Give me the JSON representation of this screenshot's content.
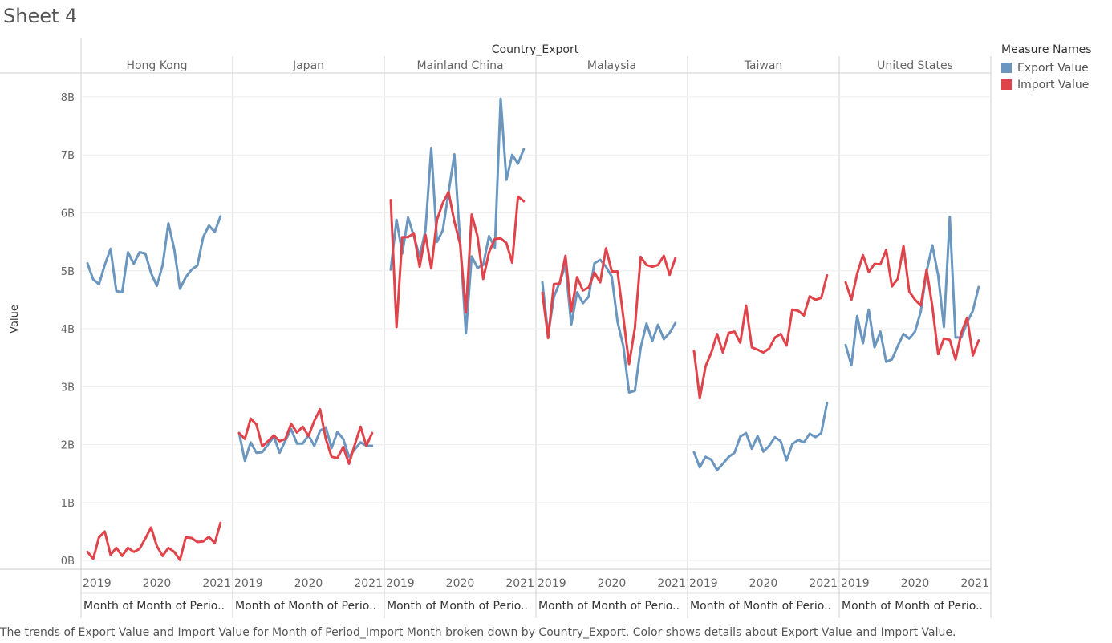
{
  "sheet_title": "Sheet 4",
  "caption": "The trends of Export Value and Import Value for Month of Period_Import Month broken down by Country_Export.  Color shows details about Export Value and Import Value.",
  "legend": {
    "title": "Measure Names",
    "items": [
      {
        "label": "Export Value",
        "color": "#6a96bf"
      },
      {
        "label": "Import Value",
        "color": "#e0434a"
      }
    ]
  },
  "chart_data": {
    "type": "line",
    "column_header_title": "Country_Export",
    "ylabel": "Value",
    "ylim": [
      -0.15,
      8.4
    ],
    "y_ticks": [
      {
        "value": 0,
        "label": "0B"
      },
      {
        "value": 1,
        "label": "1B"
      },
      {
        "value": 2,
        "label": "2B"
      },
      {
        "value": 3,
        "label": "3B"
      },
      {
        "value": 4,
        "label": "4B"
      },
      {
        "value": 5,
        "label": "5B"
      },
      {
        "value": 6,
        "label": "6B"
      },
      {
        "value": 7,
        "label": "7B"
      },
      {
        "value": 8,
        "label": "8B"
      }
    ],
    "x_axis_label": "Month of Month of Perio..",
    "x_ticks": [
      {
        "month": 1,
        "label": "2019"
      },
      {
        "month": 13,
        "label": "2020"
      },
      {
        "month": 25,
        "label": "2021"
      }
    ],
    "months": [
      1,
      2,
      3,
      4,
      5,
      6,
      7,
      8,
      9,
      10,
      11,
      12,
      13,
      14,
      15,
      16,
      17,
      18,
      19,
      20,
      21,
      22,
      23,
      24,
      25
    ],
    "grid": true,
    "legend_position": "right",
    "panels": [
      {
        "country": "Hong Kong",
        "series": [
          {
            "name": "Export Value",
            "color": "#6a96bf",
            "values": [
              5.13,
              4.85,
              4.77,
              5.1,
              5.38,
              4.65,
              4.63,
              5.32,
              5.12,
              5.32,
              5.3,
              4.96,
              4.74,
              5.1,
              5.82,
              5.38,
              4.69,
              4.89,
              5.02,
              5.09,
              5.58,
              5.78,
              5.67,
              5.94,
              null
            ]
          },
          {
            "name": "Import Value",
            "color": "#e0434a",
            "values": [
              0.15,
              0.03,
              0.4,
              0.5,
              0.1,
              0.22,
              0.08,
              0.22,
              0.15,
              0.2,
              0.38,
              0.57,
              0.25,
              0.08,
              0.22,
              0.15,
              0.01,
              0.4,
              0.39,
              0.32,
              0.33,
              0.41,
              0.3,
              0.65,
              null
            ]
          }
        ]
      },
      {
        "country": "Japan",
        "series": [
          {
            "name": "Export Value",
            "color": "#6a96bf",
            "values": [
              2.2,
              1.72,
              2.04,
              1.86,
              1.87,
              2.0,
              2.14,
              1.86,
              2.07,
              2.27,
              2.02,
              2.02,
              2.16,
              1.98,
              2.24,
              2.3,
              1.94,
              2.22,
              2.1,
              1.79,
              1.92,
              2.04,
              1.98,
              1.98,
              null
            ]
          },
          {
            "name": "Import Value",
            "color": "#e0434a",
            "values": [
              2.2,
              2.1,
              2.45,
              2.35,
              1.97,
              2.06,
              2.16,
              2.06,
              2.1,
              2.36,
              2.21,
              2.31,
              2.15,
              2.41,
              2.61,
              2.1,
              1.79,
              1.77,
              1.96,
              1.67,
              2.0,
              2.31,
              1.98,
              2.2,
              null
            ]
          }
        ]
      },
      {
        "country": "Mainland China",
        "series": [
          {
            "name": "Export Value",
            "color": "#6a96bf",
            "values": [
              5.02,
              5.88,
              5.3,
              5.92,
              5.6,
              5.25,
              5.7,
              7.12,
              5.5,
              5.7,
              6.35,
              7.01,
              5.5,
              3.92,
              5.25,
              5.05,
              5.1,
              5.6,
              5.4,
              7.97,
              6.57,
              7.0,
              6.85,
              7.1,
              null
            ]
          },
          {
            "name": "Import Value",
            "color": "#e0434a",
            "values": [
              6.22,
              4.03,
              5.58,
              5.58,
              5.65,
              5.07,
              5.62,
              5.04,
              5.88,
              6.17,
              6.36,
              5.85,
              5.46,
              4.28,
              5.97,
              5.6,
              4.86,
              5.32,
              5.55,
              5.56,
              5.48,
              5.14,
              6.28,
              6.2,
              null
            ]
          }
        ]
      },
      {
        "country": "Malaysia",
        "series": [
          {
            "name": "Export Value",
            "color": "#6a96bf",
            "values": [
              4.8,
              3.9,
              4.55,
              4.8,
              5.1,
              4.07,
              4.63,
              4.44,
              4.55,
              5.13,
              5.19,
              5.07,
              4.9,
              4.12,
              3.7,
              2.9,
              2.93,
              3.67,
              4.09,
              3.79,
              4.07,
              3.82,
              3.93,
              4.1,
              null
            ]
          },
          {
            "name": "Import Value",
            "color": "#e0434a",
            "values": [
              4.62,
              3.84,
              4.77,
              4.78,
              5.26,
              4.3,
              4.89,
              4.66,
              4.71,
              4.97,
              4.8,
              5.39,
              4.99,
              4.99,
              4.2,
              3.39,
              4.01,
              5.24,
              5.1,
              5.07,
              5.1,
              5.26,
              4.93,
              5.22,
              null
            ]
          }
        ]
      },
      {
        "country": "Taiwan",
        "series": [
          {
            "name": "Export Value",
            "color": "#6a96bf",
            "values": [
              1.87,
              1.61,
              1.79,
              1.74,
              1.56,
              1.67,
              1.79,
              1.86,
              2.14,
              2.2,
              1.93,
              2.15,
              1.88,
              1.98,
              2.13,
              2.06,
              1.73,
              2.01,
              2.08,
              2.04,
              2.19,
              2.13,
              2.2,
              2.72,
              null
            ]
          },
          {
            "name": "Import Value",
            "color": "#e0434a",
            "values": [
              3.62,
              2.8,
              3.35,
              3.59,
              3.91,
              3.59,
              3.93,
              3.95,
              3.76,
              4.4,
              3.68,
              3.64,
              3.59,
              3.66,
              3.85,
              3.91,
              3.71,
              4.33,
              4.31,
              4.23,
              4.56,
              4.5,
              4.53,
              4.92,
              null
            ]
          }
        ]
      },
      {
        "country": "United States",
        "series": [
          {
            "name": "Export Value",
            "color": "#6a96bf",
            "values": [
              3.72,
              3.37,
              4.22,
              3.75,
              4.33,
              3.68,
              3.95,
              3.43,
              3.47,
              3.7,
              3.91,
              3.83,
              3.95,
              4.3,
              4.99,
              5.44,
              4.92,
              4.03,
              5.93,
              3.85,
              3.85,
              4.11,
              4.31,
              4.72,
              null
            ]
          },
          {
            "name": "Import Value",
            "color": "#e0434a",
            "values": [
              4.8,
              4.5,
              4.95,
              5.27,
              4.98,
              5.12,
              5.11,
              5.36,
              4.73,
              4.86,
              5.43,
              4.64,
              4.5,
              4.4,
              5.02,
              4.38,
              3.56,
              3.83,
              3.81,
              3.47,
              3.93,
              4.19,
              3.54,
              3.8,
              null
            ]
          }
        ]
      }
    ]
  }
}
